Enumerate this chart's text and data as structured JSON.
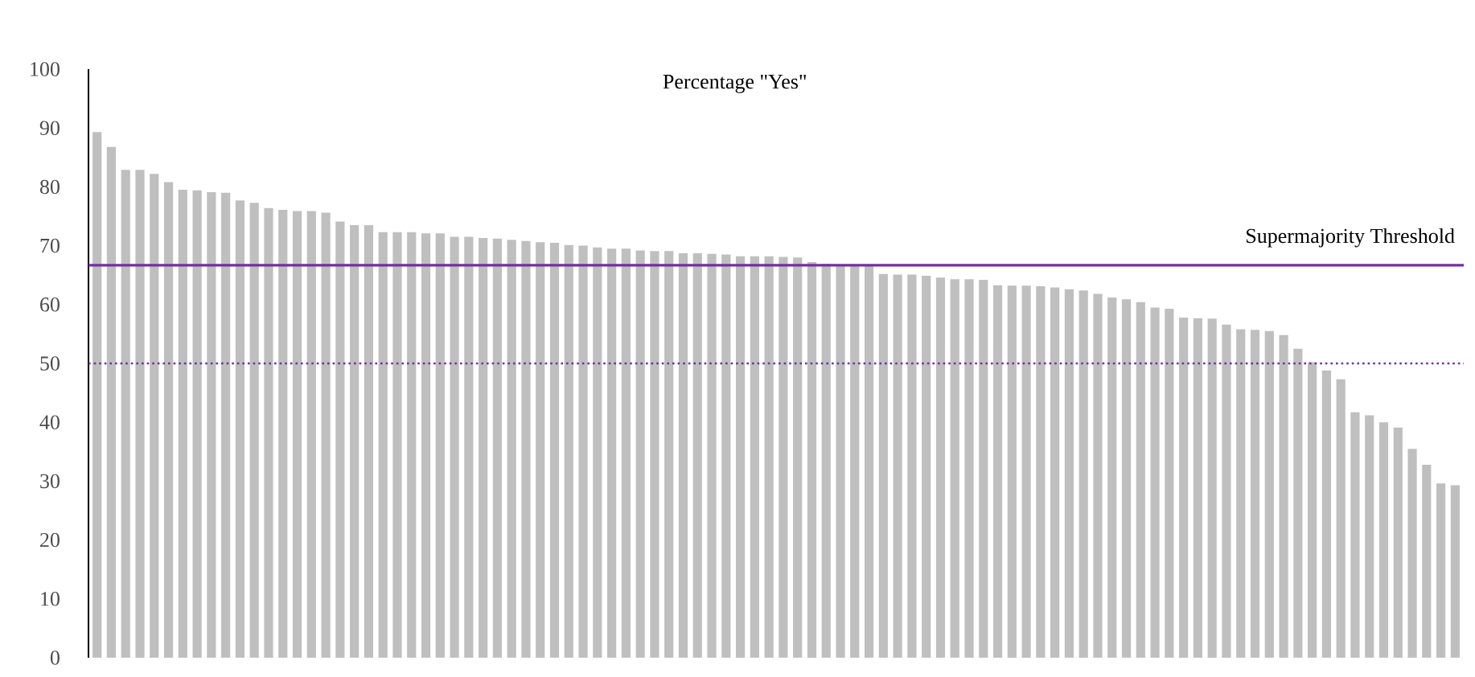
{
  "chart_data": {
    "type": "bar",
    "title": "Percentage \"Yes\"",
    "categories": [
      null,
      null,
      null,
      null,
      null,
      null,
      null,
      null,
      null,
      null,
      null,
      null,
      null,
      null,
      null,
      null,
      null,
      null,
      null,
      null,
      null,
      null,
      null,
      null,
      null,
      null,
      null,
      null,
      null,
      null,
      null,
      null,
      null,
      null,
      null,
      null,
      null,
      null,
      null,
      null,
      null,
      null,
      null,
      null,
      null,
      null,
      null,
      null,
      null,
      null,
      null,
      null,
      null,
      null,
      null,
      null,
      null,
      null,
      null,
      null,
      null,
      null,
      null,
      null,
      null,
      null,
      null,
      null,
      null,
      null,
      null,
      null,
      null,
      null,
      null,
      null,
      null,
      null,
      null,
      null,
      null,
      null,
      null,
      null,
      null,
      null,
      null,
      null,
      null,
      null,
      null,
      null,
      null,
      null,
      null,
      null
    ],
    "values": [
      89.3,
      86.8,
      82.9,
      82.9,
      82.2,
      80.8,
      79.5,
      79.4,
      79.1,
      79.0,
      77.7,
      77.3,
      76.4,
      76.1,
      75.9,
      75.9,
      75.6,
      74.1,
      73.5,
      73.5,
      72.3,
      72.3,
      72.3,
      72.1,
      72.1,
      71.5,
      71.5,
      71.3,
      71.2,
      71.0,
      70.8,
      70.6,
      70.5,
      70.1,
      70.0,
      69.7,
      69.5,
      69.5,
      69.2,
      69.1,
      69.1,
      68.7,
      68.7,
      68.6,
      68.5,
      68.2,
      68.2,
      68.2,
      68.1,
      68.0,
      67.2,
      66.9,
      66.8,
      66.6,
      66.6,
      65.2,
      65.1,
      65.1,
      64.9,
      64.6,
      64.3,
      64.3,
      64.2,
      63.3,
      63.2,
      63.2,
      63.1,
      62.9,
      62.6,
      62.4,
      61.8,
      61.2,
      60.9,
      60.4,
      59.5,
      59.3,
      57.8,
      57.7,
      57.6,
      56.6,
      55.8,
      55.7,
      55.5,
      54.8,
      52.5,
      50.2,
      48.8,
      47.3,
      41.7,
      41.2,
      40.0,
      39.1,
      35.5,
      32.8,
      29.6,
      29.3
    ],
    "color": "#bfbfbf",
    "ylim": [
      0,
      100
    ],
    "yticks": [
      0,
      10,
      20,
      30,
      40,
      50,
      60,
      70,
      80,
      90,
      100
    ],
    "ref_lines": [
      {
        "axis": "y",
        "value": 66.67,
        "label": "Supermajority Threshold",
        "color": "#7030a0",
        "line_style": "solid"
      },
      {
        "axis": "y",
        "value": 50,
        "color": "#7030a0",
        "line_style": "dotted"
      }
    ]
  }
}
